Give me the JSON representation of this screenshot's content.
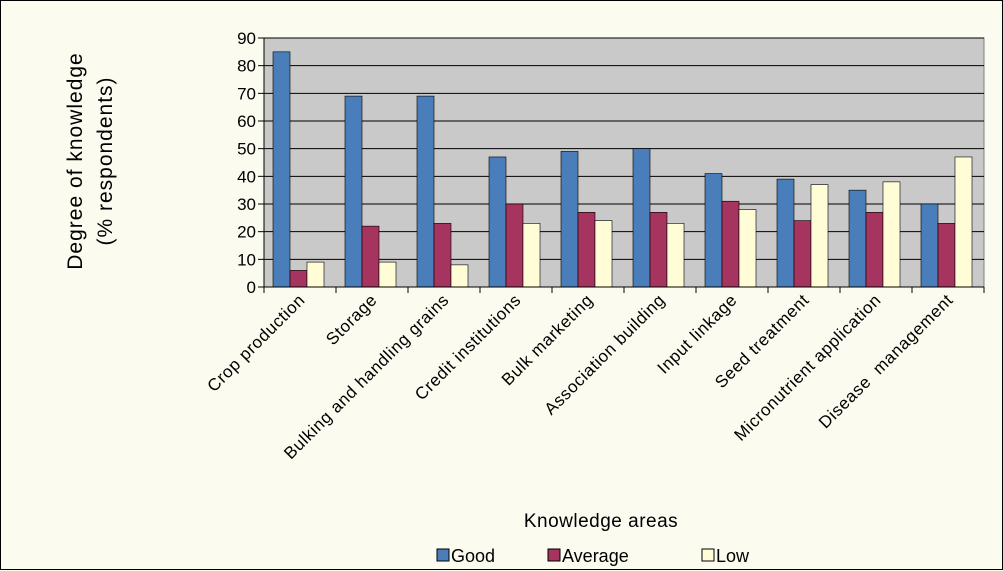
{
  "chart_data": {
    "type": "bar",
    "ylabel_line1": "Degree of knowledge",
    "ylabel_line2": "(% respondents)",
    "xlabel": "Knowledge areas",
    "ylim": [
      0,
      90
    ],
    "yticks": [
      0,
      10,
      20,
      30,
      40,
      50,
      60,
      70,
      80,
      90
    ],
    "grid": true,
    "legend_position": "bottom",
    "categories": [
      "Crop production",
      "Storage",
      "Bulking and handling grains",
      "Credit institutions",
      "Bulk marketing",
      "Association building",
      "Input linkage",
      "Seed treatment",
      "Micronutrient application",
      "Disease  management"
    ],
    "series": [
      {
        "name": "Good",
        "color": "#4A7EBB",
        "values": [
          85,
          69,
          69,
          47,
          49,
          50,
          41,
          39,
          35,
          30
        ]
      },
      {
        "name": "Average",
        "color": "#A5345E",
        "values": [
          6,
          22,
          23,
          30,
          27,
          27,
          31,
          24,
          27,
          23
        ]
      },
      {
        "name": "Low",
        "color": "#FFFCD6",
        "values": [
          9,
          9,
          8,
          23,
          24,
          23,
          28,
          37,
          38,
          47
        ]
      }
    ]
  }
}
